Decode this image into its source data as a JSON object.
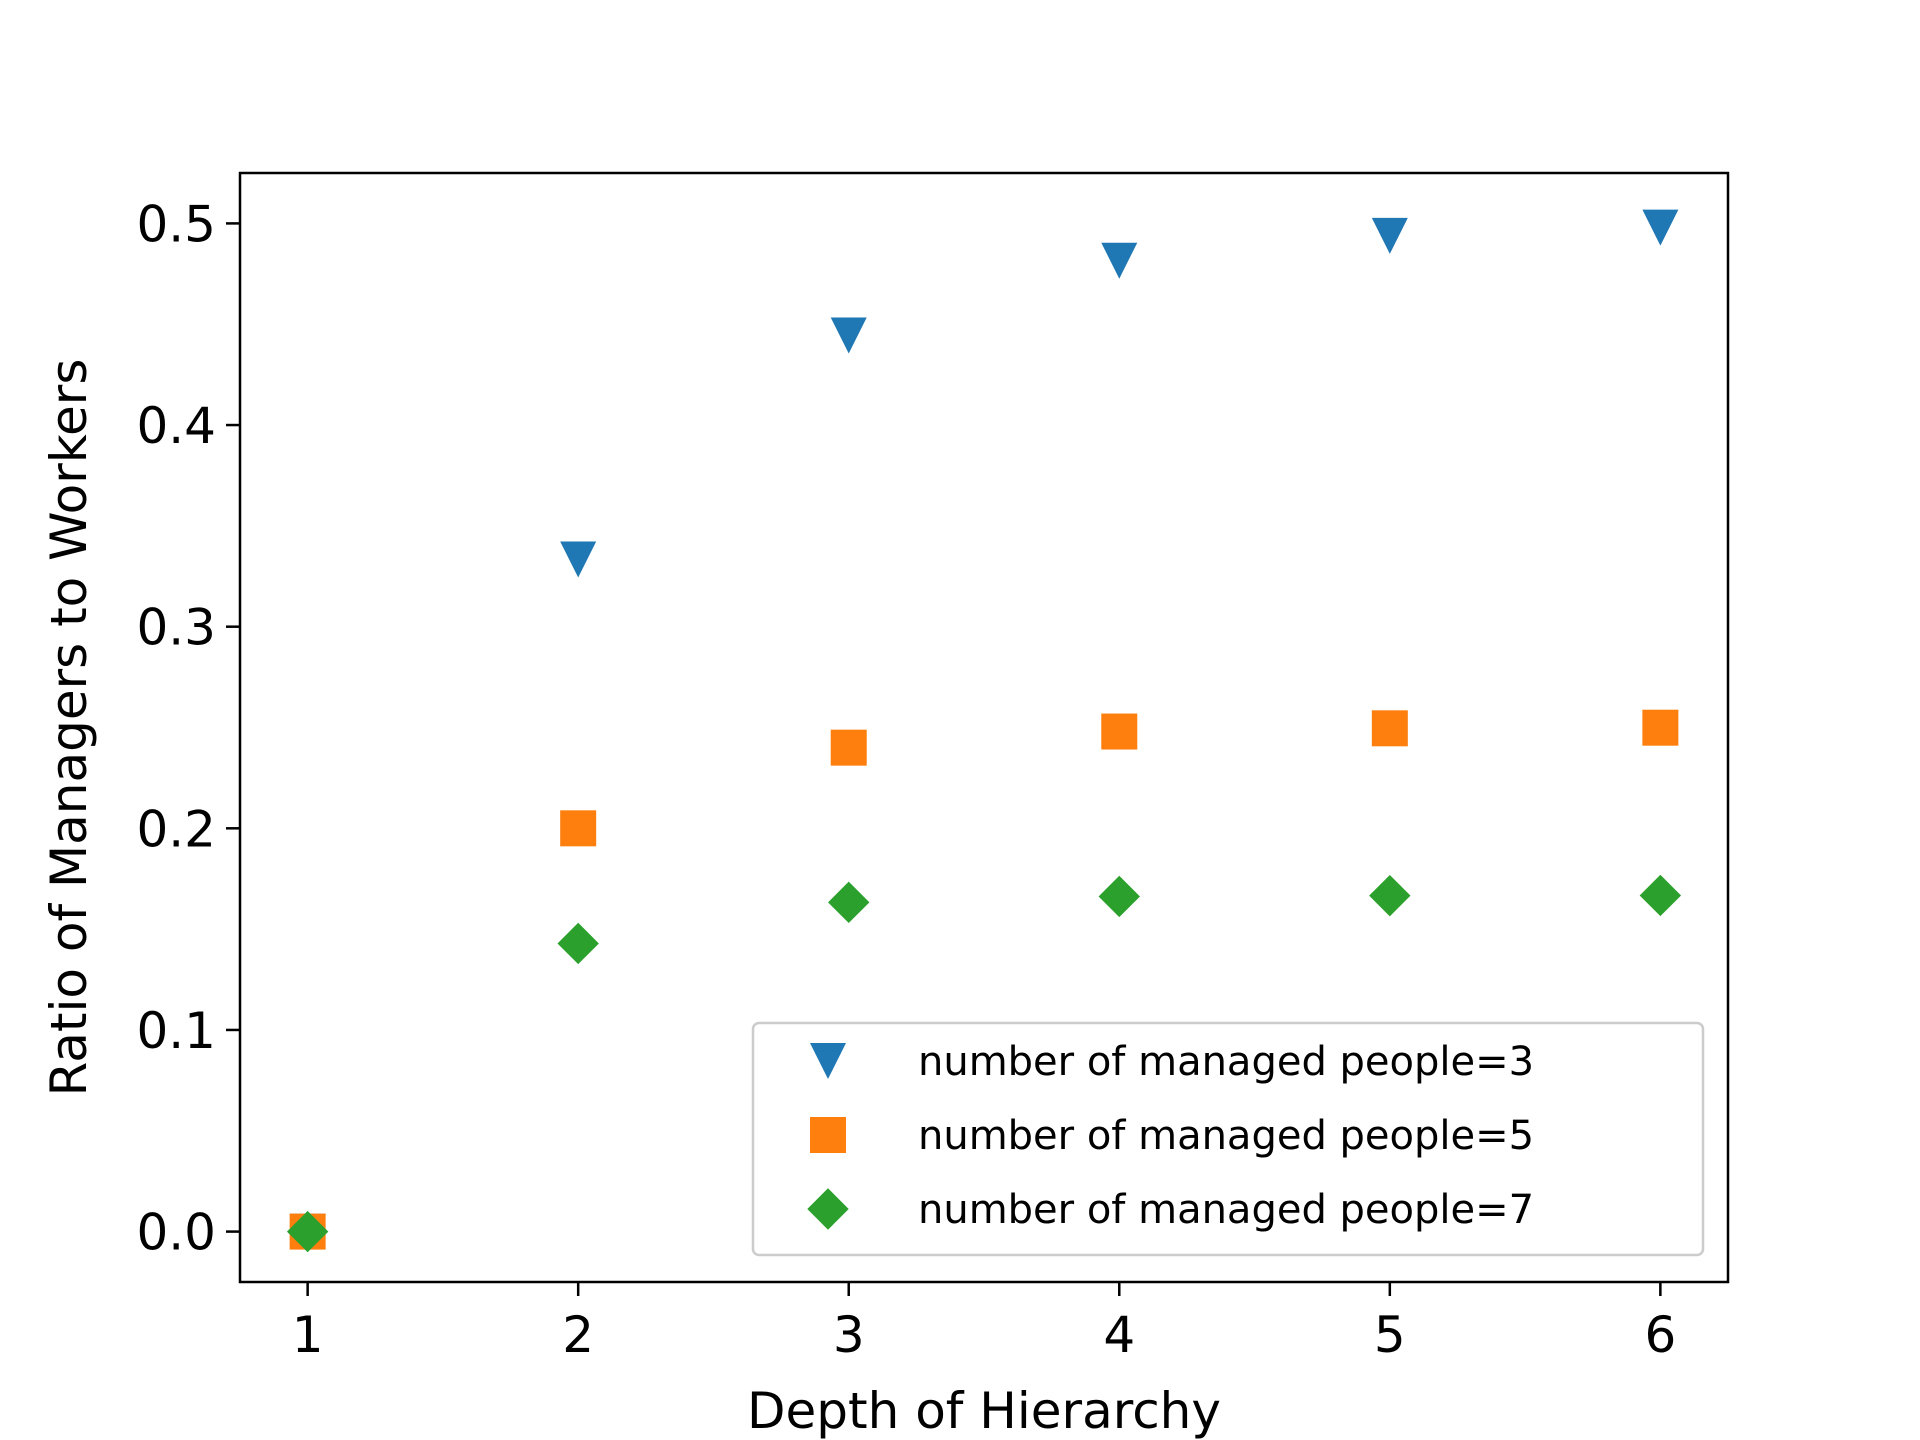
{
  "chart_data": {
    "type": "scatter",
    "title": "",
    "xlabel": "Depth of Hierarchy",
    "ylabel": "Ratio of Managers to Workers",
    "x": [
      1,
      2,
      3,
      4,
      5,
      6
    ],
    "xlim": [
      0.75,
      6.25
    ],
    "ylim": [
      -0.025,
      0.525
    ],
    "xticks": [
      1,
      2,
      3,
      4,
      5,
      6
    ],
    "xtick_labels": [
      "1",
      "2",
      "3",
      "4",
      "5",
      "6"
    ],
    "yticks": [
      0.0,
      0.1,
      0.2,
      0.3,
      0.4,
      0.5
    ],
    "ytick_labels": [
      "0.0",
      "0.1",
      "0.2",
      "0.3",
      "0.4",
      "0.5"
    ],
    "grid": false,
    "legend_position": "lower-right",
    "series": [
      {
        "name": "number of managed people=3",
        "marker": "triangle-down",
        "color": "#1f77b4",
        "values": [
          0.0,
          0.3333,
          0.4444,
          0.4815,
          0.4938,
          0.4979
        ]
      },
      {
        "name": "number of managed people=5",
        "marker": "square",
        "color": "#ff7f0e",
        "values": [
          0.0,
          0.2,
          0.24,
          0.248,
          0.2496,
          0.2499
        ]
      },
      {
        "name": "number of managed people=7",
        "marker": "diamond",
        "color": "#2ca02c",
        "values": [
          0.0,
          0.1429,
          0.1633,
          0.1662,
          0.1666,
          0.1667
        ]
      }
    ]
  }
}
